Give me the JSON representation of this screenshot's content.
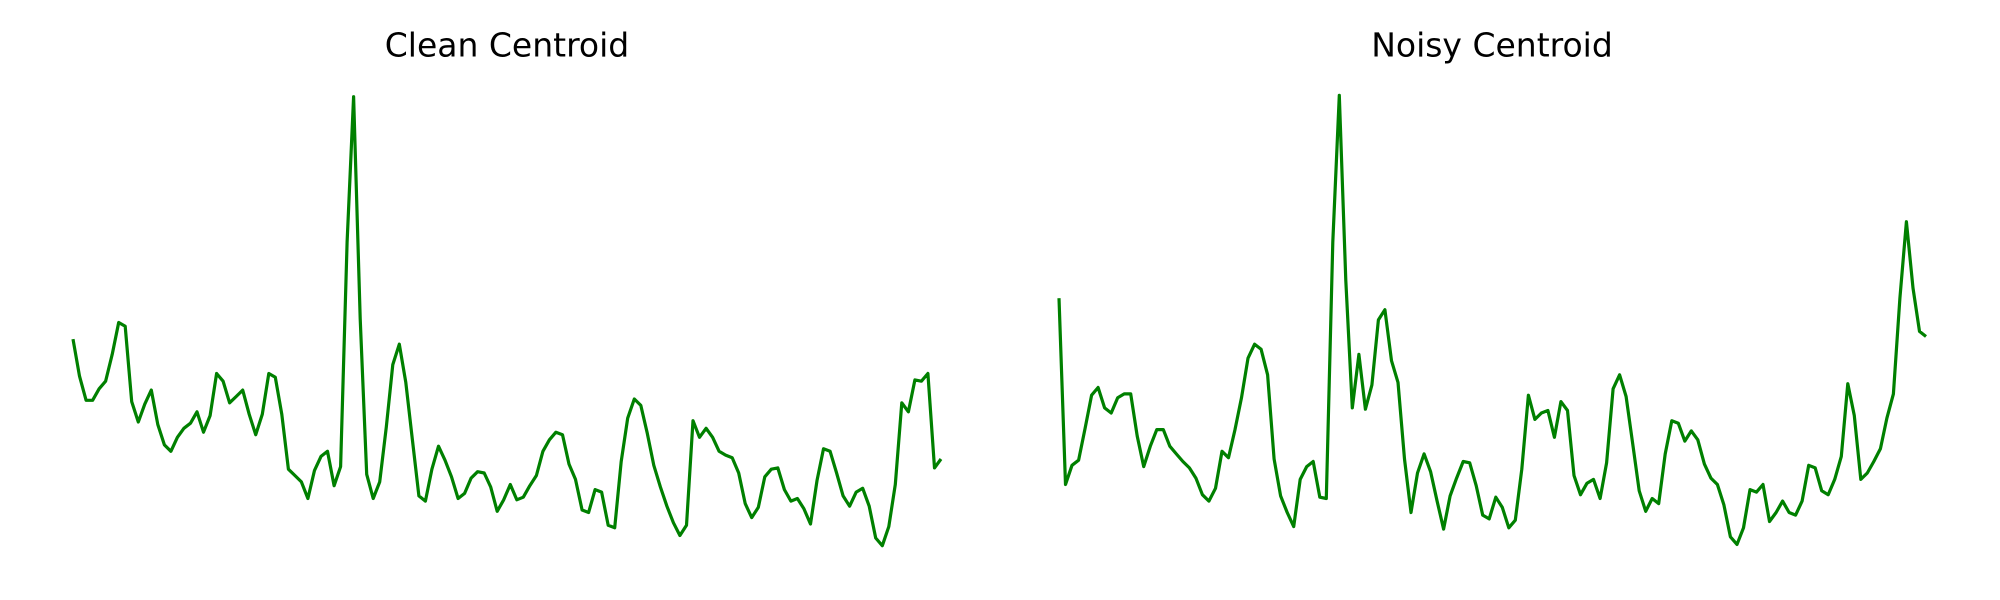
{
  "chart_data": [
    {
      "type": "line",
      "title": "Clean Centroid",
      "color": "#008000",
      "values": [
        174,
        145,
        126,
        126,
        135,
        141,
        162,
        187,
        184,
        125,
        109,
        123,
        134,
        107,
        91,
        86,
        97,
        104,
        108,
        117,
        101,
        114,
        147,
        141,
        124,
        129,
        134,
        115,
        99,
        115,
        147,
        144,
        115,
        72,
        67,
        62,
        49,
        71,
        82,
        86,
        59,
        74,
        250,
        364,
        190,
        68,
        49,
        62,
        105,
        154,
        170,
        140,
        95,
        51,
        47,
        72,
        90,
        79,
        66,
        49,
        53,
        65,
        70,
        69,
        58,
        39,
        48,
        60,
        48,
        50,
        59,
        67,
        86,
        95,
        101,
        99,
        76,
        64,
        40,
        38,
        56,
        54,
        28,
        26,
        78,
        112,
        127,
        122,
        100,
        75,
        58,
        43,
        30,
        20,
        28,
        110,
        97,
        104,
        97,
        86,
        83,
        81,
        69,
        45,
        34,
        42,
        66,
        72,
        73,
        56,
        47,
        49,
        41,
        29,
        63,
        88,
        86,
        69,
        51,
        43,
        54,
        57,
        43,
        18,
        12,
        27,
        60,
        124,
        117,
        142,
        141,
        147,
        73,
        80
      ]
    },
    {
      "type": "line",
      "title": "Noisy Centroid",
      "color": "#008000",
      "values": [
        206,
        60,
        75,
        79,
        104,
        130,
        136,
        120,
        116,
        128,
        131,
        131,
        98,
        74,
        90,
        103,
        103,
        90,
        84,
        78,
        73,
        65,
        52,
        47,
        57,
        86,
        81,
        103,
        128,
        159,
        170,
        166,
        146,
        80,
        51,
        38,
        27,
        64,
        74,
        78,
        50,
        49,
        250,
        365,
        220,
        120,
        162,
        119,
        138,
        189,
        197,
        157,
        140,
        80,
        38,
        69,
        84,
        70,
        47,
        25,
        51,
        65,
        78,
        77,
        59,
        36,
        33,
        50,
        42,
        26,
        32,
        72,
        130,
        111,
        116,
        118,
        97,
        125,
        118,
        67,
        52,
        61,
        64,
        49,
        77,
        135,
        146,
        129,
        92,
        55,
        39,
        49,
        45,
        84,
        110,
        108,
        94,
        102,
        95,
        76,
        65,
        60,
        44,
        19,
        13,
        26,
        56,
        54,
        60,
        31,
        38,
        47,
        38,
        36,
        47,
        75,
        73,
        55,
        52,
        64,
        82,
        139,
        114,
        64,
        69,
        78,
        88,
        112,
        131,
        206,
        266,
        214,
        180,
        176
      ]
    }
  ]
}
